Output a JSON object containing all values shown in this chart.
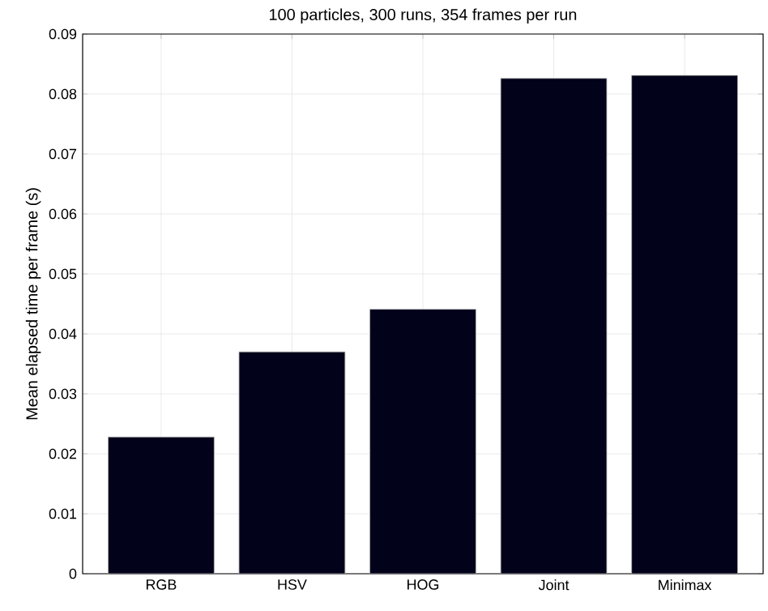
{
  "chart_data": {
    "type": "bar",
    "title": "100 particles, 300 runs, 354 frames per run",
    "ylabel": "Mean elapsed time per frame (s)",
    "categories": [
      "RGB",
      "HSV",
      "HOG",
      "Joint",
      "Minimax"
    ],
    "values": [
      0.0228,
      0.037,
      0.0441,
      0.0826,
      0.0831
    ],
    "color": "#02021a",
    "ylim": [
      0,
      0.09
    ],
    "yticks": [
      0,
      0.01,
      0.02,
      0.03,
      0.04,
      0.05,
      0.06,
      0.07,
      0.08,
      0.09
    ],
    "grid": true
  }
}
